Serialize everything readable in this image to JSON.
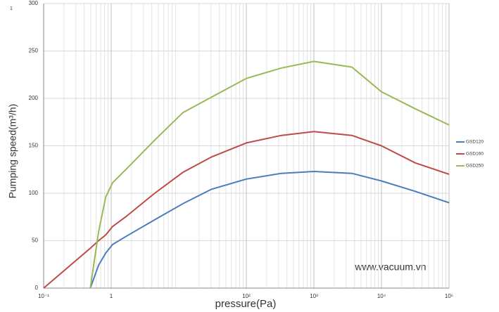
{
  "corner_label": "1",
  "watermark": "www.vacuum.vn",
  "chart_data": {
    "type": "line",
    "x_label": "pressure(Pa)",
    "y_label": "Pumping speed(m³/h)",
    "x": [
      0.1,
      0.49,
      0.65,
      0.83,
      1.05,
      1.7,
      4.4,
      11.5,
      30,
      100,
      330,
      1000,
      3650,
      10000,
      31600,
      100000
    ],
    "series": [
      {
        "name": "GSD120",
        "color": "#4a7ebb",
        "values": [
          null,
          0,
          24,
          37,
          46,
          55,
          72,
          89,
          104,
          115,
          121,
          123,
          121,
          113,
          102,
          90
        ]
      },
      {
        "name": "GSD160",
        "color": "#be4b48",
        "values": [
          0,
          42,
          50,
          56,
          65,
          76,
          100,
          122,
          138,
          153,
          161,
          165,
          161,
          150,
          132,
          120
        ]
      },
      {
        "name": "GSD250",
        "color": "#98b954",
        "values": [
          null,
          0,
          59,
          96,
          111,
          126,
          156,
          185,
          201,
          221,
          232,
          239,
          233,
          207,
          189,
          172
        ]
      }
    ],
    "xscale": "log",
    "xlim": [
      0.1,
      100000
    ],
    "xticks": [
      {
        "value": 0.1,
        "label": "10⁻¹"
      },
      1,
      {
        "value": 100,
        "label": "10²"
      },
      {
        "value": 1000,
        "label": "10³"
      },
      {
        "value": 10000,
        "label": "10⁴"
      },
      {
        "value": 100000,
        "label": "10⁵"
      }
    ],
    "ylim": [
      0,
      300
    ],
    "yticks": [
      0,
      50,
      100,
      150,
      200,
      250,
      300
    ],
    "grid": true,
    "legend": "right"
  }
}
